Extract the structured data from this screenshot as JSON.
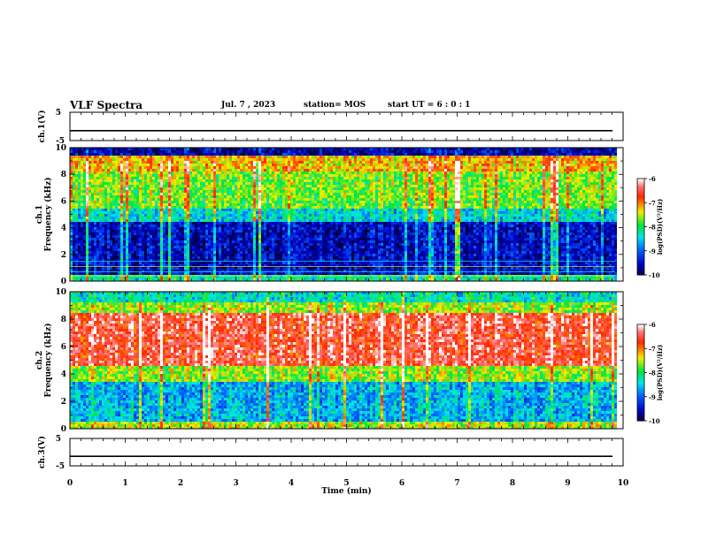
{
  "header": {
    "title": "VLF Spectra",
    "date": "Jul. 7 , 2023",
    "station": "station= MOS",
    "start": "start UT =  6 : 0 : 1"
  },
  "chart_data": {
    "type": "heatmap",
    "title": "VLF Spectra",
    "xlabel": "Time  (min)",
    "xlim": [
      0,
      10
    ],
    "x_ticks": [
      "0",
      "1",
      "2",
      "3",
      "4",
      "5",
      "6",
      "7",
      "8",
      "9",
      "10"
    ],
    "data_end_min": 9.85,
    "panels": [
      {
        "name": "ch.1(V)",
        "type": "line",
        "ylabel": "ch.1(V)",
        "ylim": [
          -5,
          5
        ],
        "y_ticks": [
          "5",
          "-5"
        ],
        "level": -1.5
      },
      {
        "name": "ch.1",
        "type": "heatmap",
        "ylabel": "ch.1\nFrequency  (kHz)",
        "ylim": [
          0,
          10
        ],
        "y_ticks": [
          "0",
          "2",
          "4",
          "6",
          "8",
          "10"
        ],
        "colorbar": {
          "label": "log(PSD)(V²/Hz)",
          "range": [
            -10,
            -6
          ],
          "ticks": [
            "-6",
            "-7",
            "-8",
            "-9",
            "-10"
          ]
        }
      },
      {
        "name": "ch.2",
        "type": "heatmap",
        "ylabel": "ch.2\nFrequency  (kHz)",
        "ylim": [
          0,
          10
        ],
        "y_ticks": [
          "0",
          "2",
          "4",
          "6",
          "8",
          "10"
        ],
        "colorbar": {
          "label": "log(PSD)(V²/Hz)",
          "range": [
            -10,
            -6
          ],
          "ticks": [
            "-6",
            "-7",
            "-8",
            "-9",
            "-10"
          ]
        }
      },
      {
        "name": "ch.3(V)",
        "type": "line",
        "ylabel": "ch.3(V)",
        "ylim": [
          -5,
          5
        ],
        "y_ticks": [
          "5",
          "-5"
        ],
        "level": -1.5
      }
    ]
  },
  "colors": {
    "scale": [
      "#ff00ff",
      "#000080",
      "#0000ff",
      "#00ffff",
      "#00ff00",
      "#ffff00",
      "#ff0000",
      "#ffffff"
    ]
  }
}
